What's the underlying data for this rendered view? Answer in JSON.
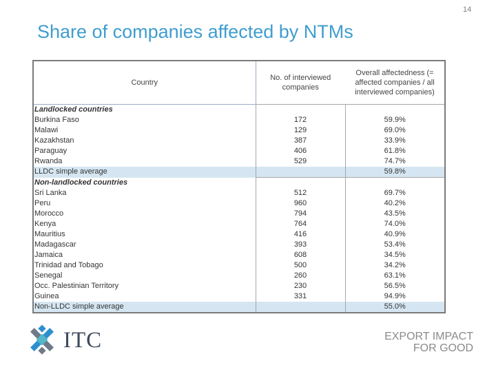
{
  "page_number": "14",
  "title": "Share of companies affected by NTMs",
  "table": {
    "headers": {
      "country": "Country",
      "interviewed": "No. of interviewed companies",
      "affectedness": "Overall affectedness (= affected companies / all interviewed companies)"
    },
    "rows": [
      {
        "name": "Landlocked countries",
        "companies": "",
        "share": "",
        "type": "group"
      },
      {
        "name": "Burkina Faso",
        "companies": "172",
        "share": "59.9%",
        "type": "row"
      },
      {
        "name": "Malawi",
        "companies": "129",
        "share": "69.0%",
        "type": "row"
      },
      {
        "name": "Kazakhstan",
        "companies": "387",
        "share": "33.9%",
        "type": "row"
      },
      {
        "name": "Paraguay",
        "companies": "406",
        "share": "61.8%",
        "type": "row"
      },
      {
        "name": "Rwanda",
        "companies": "529",
        "share": "74.7%",
        "type": "row"
      },
      {
        "name": "LLDC simple average",
        "companies": "",
        "share": "59.8%",
        "type": "avg"
      },
      {
        "name": "Non-landlocked countries",
        "companies": "",
        "share": "",
        "type": "group"
      },
      {
        "name": "Sri Lanka",
        "companies": "512",
        "share": "69.7%",
        "type": "row"
      },
      {
        "name": "Peru",
        "companies": "960",
        "share": "40.2%",
        "type": "row"
      },
      {
        "name": "Morocco",
        "companies": "794",
        "share": "43.5%",
        "type": "row"
      },
      {
        "name": "Kenya",
        "companies": "764",
        "share": "74.0%",
        "type": "row"
      },
      {
        "name": "Mauritius",
        "companies": "416",
        "share": "40.9%",
        "type": "row"
      },
      {
        "name": "Madagascar",
        "companies": "393",
        "share": "53.4%",
        "type": "row"
      },
      {
        "name": "Jamaica",
        "companies": "608",
        "share": "34.5%",
        "type": "row"
      },
      {
        "name": "Trinidad and Tobago",
        "companies": "500",
        "share": "34.2%",
        "type": "row"
      },
      {
        "name": "Senegal",
        "companies": "260",
        "share": "63.1%",
        "type": "row"
      },
      {
        "name": "Occ. Palestinian Territory",
        "companies": "230",
        "share": "56.5%",
        "type": "row"
      },
      {
        "name": "Guinea",
        "companies": "331",
        "share": "94.9%",
        "type": "row"
      },
      {
        "name": "Non-LLDC simple average",
        "companies": "",
        "share": "55.0%",
        "type": "avg"
      }
    ]
  },
  "logo": {
    "text": "ITC",
    "icon": "itc-cross-logo-icon",
    "colors": {
      "blue": "#2e8fd0",
      "grey": "#6e7a88",
      "teal": "#53b7c8"
    }
  },
  "tagline": {
    "line1": "EXPORT IMPACT",
    "line2": "FOR GOOD"
  },
  "colors": {
    "title": "#3f9dcf",
    "average_row": "#d5e6f2",
    "border": "#7a7a7a"
  }
}
